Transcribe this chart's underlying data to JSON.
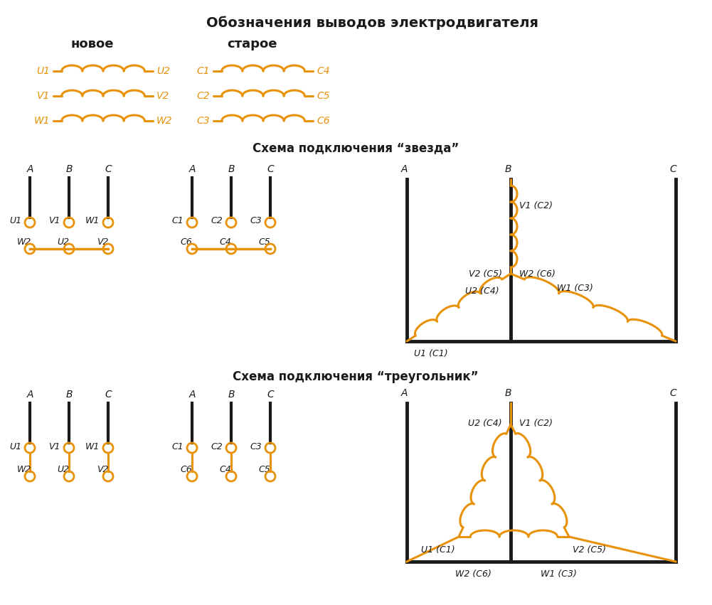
{
  "title_main": "Обозначения выводов электродвигателя",
  "label_new": "новое",
  "label_old": "старое",
  "title_star": "Схема подключения “звезда”",
  "title_triangle": "Схема подключения “треугольник”",
  "orange": "#E8920A",
  "black": "#1a1a1a",
  "bg": "#ffffff",
  "coil_rows_new": [
    {
      "left": "U1",
      "right": "U2"
    },
    {
      "left": "V1",
      "right": "V2"
    },
    {
      "left": "W1",
      "right": "W2"
    }
  ],
  "coil_rows_old": [
    {
      "left": "C1",
      "right": "C4"
    },
    {
      "left": "C2",
      "right": "C5"
    },
    {
      "left": "C3",
      "right": "C6"
    }
  ]
}
